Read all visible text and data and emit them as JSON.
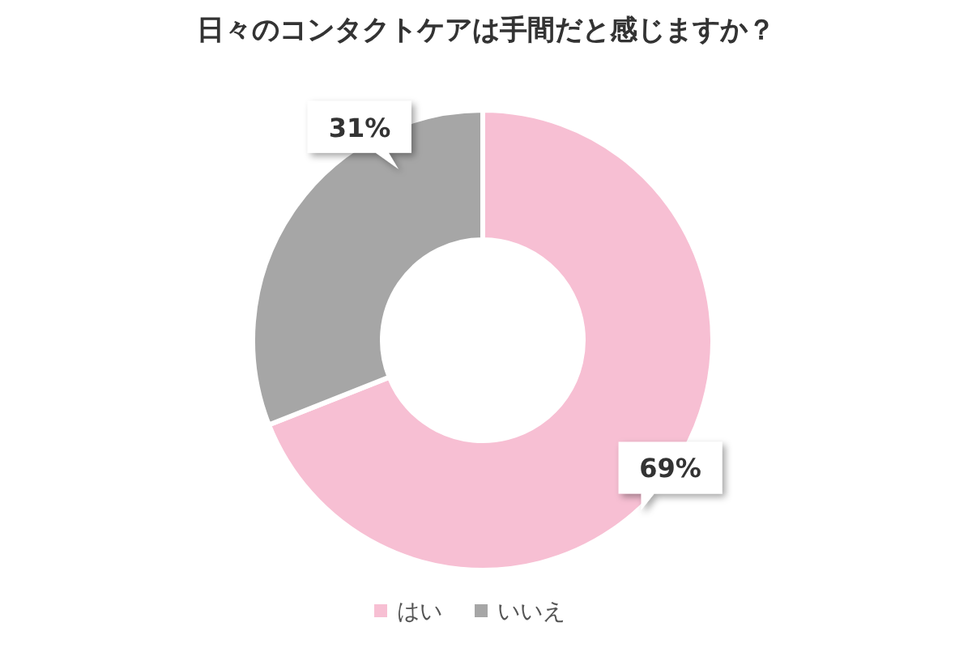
{
  "chart_data": {
    "type": "donut",
    "title": "日々のコンタクトケアは手間だと感じますか？",
    "categories": [
      "はい",
      "いいえ"
    ],
    "values": [
      69,
      31
    ],
    "colors": [
      "#f7bfd3",
      "#a6a6a6"
    ],
    "value_labels": [
      "69%",
      "31%"
    ],
    "legend": "bottom"
  }
}
